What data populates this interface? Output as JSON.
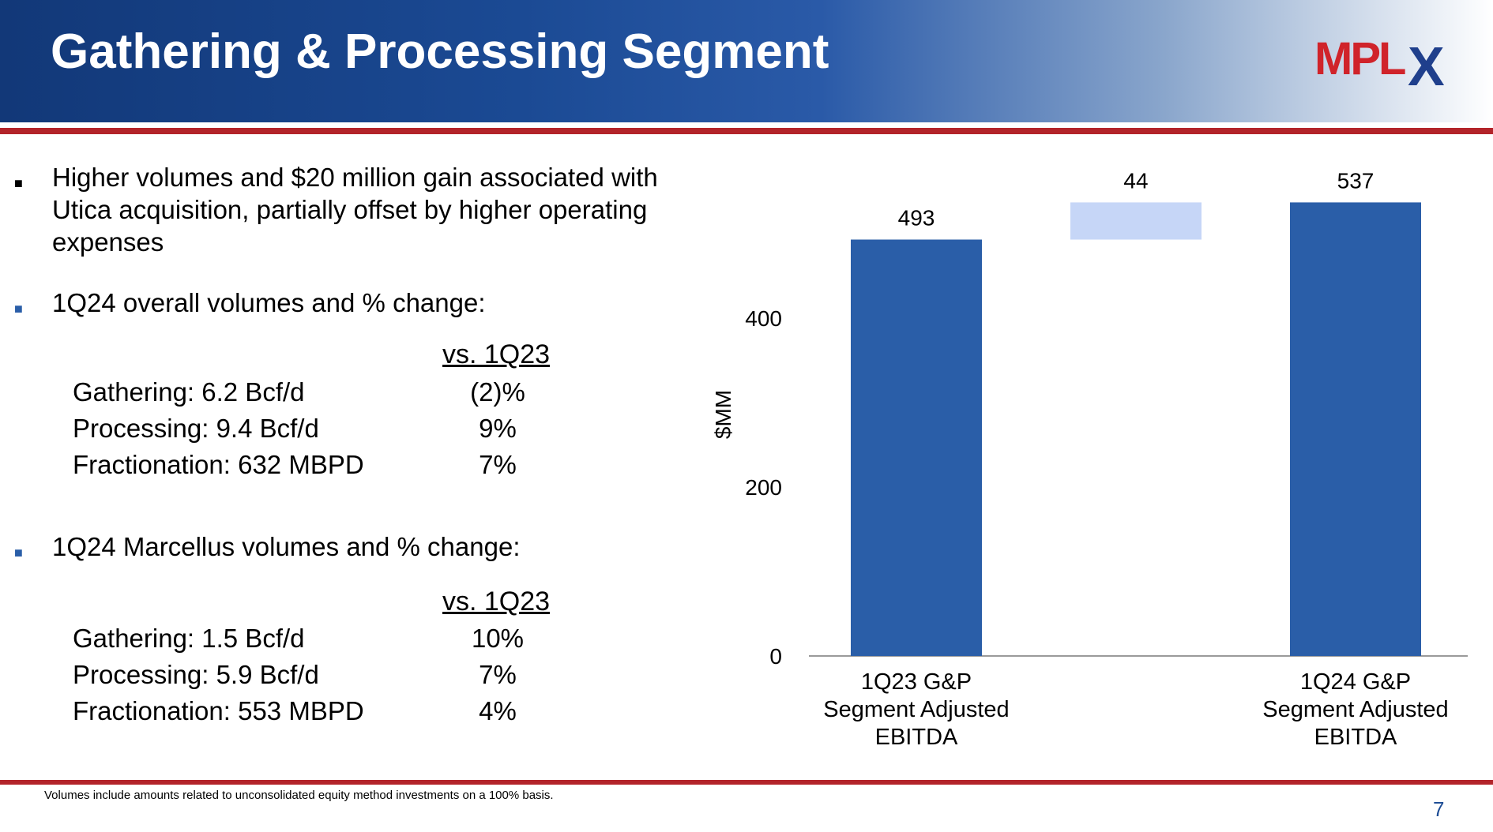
{
  "header": {
    "title": "Gathering & Processing Segment",
    "logo_text": "MPLX"
  },
  "bullets": [
    {
      "lines": [
        "Higher volumes and $20 million gain associated with",
        "Utica acquisition, partially offset by higher operating",
        "expenses"
      ]
    },
    {
      "lines": [
        "1Q24 overall volumes and % change:"
      ]
    },
    {
      "lines": [
        "1Q24 Marcellus volumes and % change:"
      ]
    }
  ],
  "overall": {
    "header": "vs. 1Q23",
    "rows": [
      {
        "label": "Gathering: 6.2 Bcf/d",
        "change": "(2)%"
      },
      {
        "label": "Processing: 9.4 Bcf/d",
        "change": "9%"
      },
      {
        "label": "Fractionation: 632 MBPD",
        "change": "7%"
      }
    ]
  },
  "marcellus": {
    "header": "vs. 1Q23",
    "rows": [
      {
        "label": "Gathering: 1.5 Bcf/d",
        "change": "10%"
      },
      {
        "label": "Processing: 5.9 Bcf/d",
        "change": "7%"
      },
      {
        "label": "Fractionation: 553 MBPD",
        "change": "4%"
      }
    ]
  },
  "footnote": "Volumes include amounts related to unconsolidated equity method investments on a 100% basis.",
  "page_number": "7",
  "colors": {
    "bar": "#2a5ea8",
    "delta": "#c6d6f7",
    "accent_red": "#b3242a",
    "page_num": "#1f4e96"
  },
  "chart_data": {
    "type": "bar",
    "subtype": "waterfall",
    "categories": [
      [
        "1Q23 G&P",
        "Segment Adjusted",
        "EBITDA"
      ],
      [
        ""
      ],
      [
        "1Q24 G&P",
        "Segment Adjusted",
        "EBITDA"
      ]
    ],
    "bars": [
      {
        "base": 0,
        "value": 493,
        "label": "493",
        "kind": "total"
      },
      {
        "base": 493,
        "value": 44,
        "label": "44",
        "kind": "delta"
      },
      {
        "base": 0,
        "value": 537,
        "label": "537",
        "kind": "total"
      }
    ],
    "ylabel": "$MM",
    "yticks": [
      0,
      200,
      400
    ],
    "ylim": [
      0,
      537
    ],
    "grid": false
  }
}
